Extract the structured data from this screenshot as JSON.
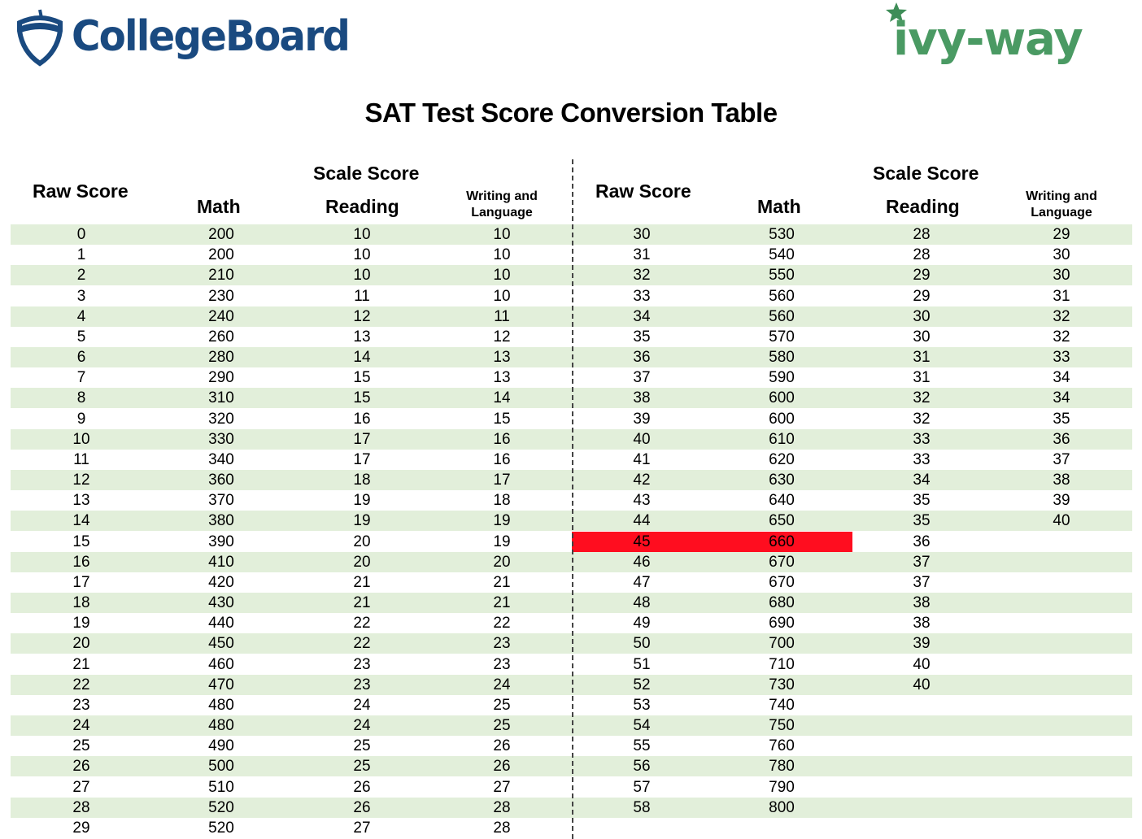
{
  "logos": {
    "left": "CollegeBoard",
    "right": "ivy-way"
  },
  "title": "SAT Test Score Conversion Table",
  "headers": {
    "raw": "Raw Score",
    "scale": "Scale Score",
    "math": "Math",
    "reading": "Reading",
    "writing_line1": "Writing and",
    "writing_line2": "Language"
  },
  "colors": {
    "stripe": "#e2efda",
    "highlight": "#ff0d1f",
    "collegeboard": "#1a4a80",
    "ivyway": "#4a9a63"
  },
  "highlight_row": {
    "raw": "45",
    "columns": [
      "raw",
      "math"
    ]
  },
  "left_rows": [
    [
      "0",
      "200",
      "10",
      "10"
    ],
    [
      "1",
      "200",
      "10",
      "10"
    ],
    [
      "2",
      "210",
      "10",
      "10"
    ],
    [
      "3",
      "230",
      "11",
      "10"
    ],
    [
      "4",
      "240",
      "12",
      "11"
    ],
    [
      "5",
      "260",
      "13",
      "12"
    ],
    [
      "6",
      "280",
      "14",
      "13"
    ],
    [
      "7",
      "290",
      "15",
      "13"
    ],
    [
      "8",
      "310",
      "15",
      "14"
    ],
    [
      "9",
      "320",
      "16",
      "15"
    ],
    [
      "10",
      "330",
      "17",
      "16"
    ],
    [
      "11",
      "340",
      "17",
      "16"
    ],
    [
      "12",
      "360",
      "18",
      "17"
    ],
    [
      "13",
      "370",
      "19",
      "18"
    ],
    [
      "14",
      "380",
      "19",
      "19"
    ],
    [
      "15",
      "390",
      "20",
      "19"
    ],
    [
      "16",
      "410",
      "20",
      "20"
    ],
    [
      "17",
      "420",
      "21",
      "21"
    ],
    [
      "18",
      "430",
      "21",
      "21"
    ],
    [
      "19",
      "440",
      "22",
      "22"
    ],
    [
      "20",
      "450",
      "22",
      "23"
    ],
    [
      "21",
      "460",
      "23",
      "23"
    ],
    [
      "22",
      "470",
      "23",
      "24"
    ],
    [
      "23",
      "480",
      "24",
      "25"
    ],
    [
      "24",
      "480",
      "24",
      "25"
    ],
    [
      "25",
      "490",
      "25",
      "26"
    ],
    [
      "26",
      "500",
      "25",
      "26"
    ],
    [
      "27",
      "510",
      "26",
      "27"
    ],
    [
      "28",
      "520",
      "26",
      "28"
    ],
    [
      "29",
      "520",
      "27",
      "28"
    ]
  ],
  "right_rows": [
    [
      "30",
      "530",
      "28",
      "29"
    ],
    [
      "31",
      "540",
      "28",
      "30"
    ],
    [
      "32",
      "550",
      "29",
      "30"
    ],
    [
      "33",
      "560",
      "29",
      "31"
    ],
    [
      "34",
      "560",
      "30",
      "32"
    ],
    [
      "35",
      "570",
      "30",
      "32"
    ],
    [
      "36",
      "580",
      "31",
      "33"
    ],
    [
      "37",
      "590",
      "31",
      "34"
    ],
    [
      "38",
      "600",
      "32",
      "34"
    ],
    [
      "39",
      "600",
      "32",
      "35"
    ],
    [
      "40",
      "610",
      "33",
      "36"
    ],
    [
      "41",
      "620",
      "33",
      "37"
    ],
    [
      "42",
      "630",
      "34",
      "38"
    ],
    [
      "43",
      "640",
      "35",
      "39"
    ],
    [
      "44",
      "650",
      "35",
      "40"
    ],
    [
      "45",
      "660",
      "36",
      ""
    ],
    [
      "46",
      "670",
      "37",
      ""
    ],
    [
      "47",
      "670",
      "37",
      ""
    ],
    [
      "48",
      "680",
      "38",
      ""
    ],
    [
      "49",
      "690",
      "38",
      ""
    ],
    [
      "50",
      "700",
      "39",
      ""
    ],
    [
      "51",
      "710",
      "40",
      ""
    ],
    [
      "52",
      "730",
      "40",
      ""
    ],
    [
      "53",
      "740",
      "",
      ""
    ],
    [
      "54",
      "750",
      "",
      ""
    ],
    [
      "55",
      "760",
      "",
      ""
    ],
    [
      "56",
      "780",
      "",
      ""
    ],
    [
      "57",
      "790",
      "",
      ""
    ],
    [
      "58",
      "800",
      "",
      ""
    ]
  ]
}
